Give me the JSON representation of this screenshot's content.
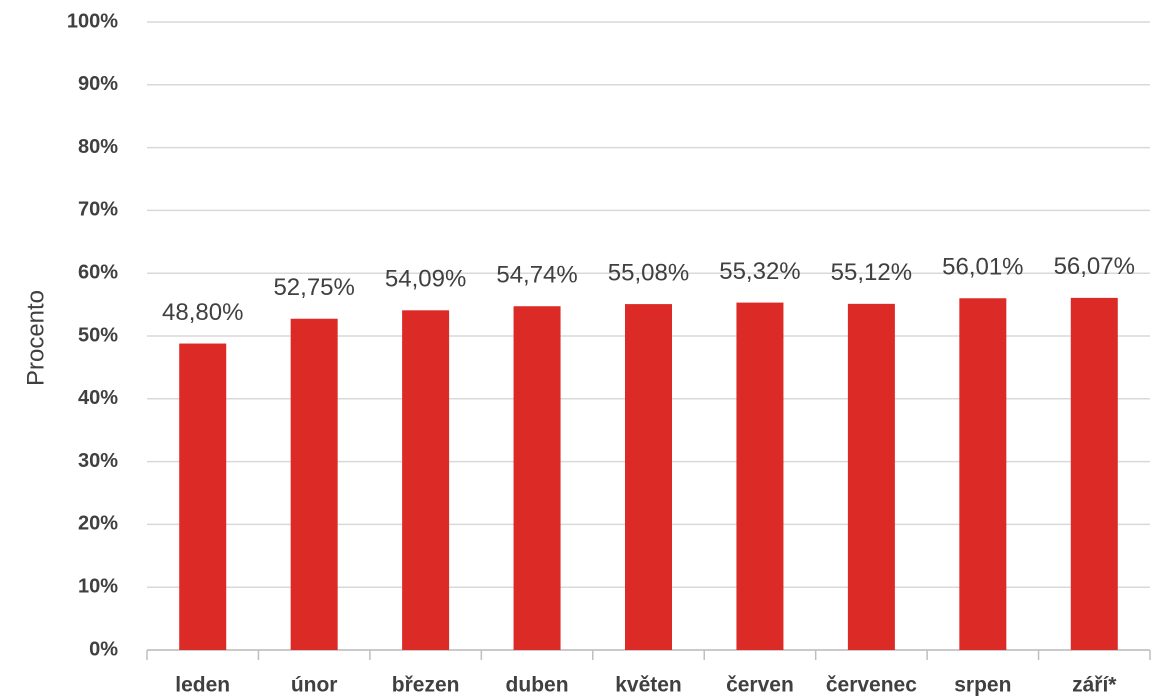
{
  "chart_data": {
    "type": "bar",
    "y_axis_label": "Procento",
    "categories": [
      "leden",
      "únor",
      "březen",
      "duben",
      "květen",
      "červen",
      "červenec",
      "srpen",
      "září*"
    ],
    "values": [
      48.8,
      52.75,
      54.09,
      54.74,
      55.08,
      55.32,
      55.12,
      56.01,
      56.07
    ],
    "value_labels": [
      "48,80%",
      "52,75%",
      "54,09%",
      "54,74%",
      "55,08%",
      "55,32%",
      "55,12%",
      "56,01%",
      "56,07%"
    ],
    "color": "#dc2a27",
    "ylim": [
      0,
      100
    ],
    "yticks": [
      {
        "value": 0,
        "label": "0%"
      },
      {
        "value": 10,
        "label": "10%"
      },
      {
        "value": 20,
        "label": "20%"
      },
      {
        "value": 30,
        "label": "30%"
      },
      {
        "value": 40,
        "label": "40%"
      },
      {
        "value": 50,
        "label": "50%"
      },
      {
        "value": 60,
        "label": "60%"
      },
      {
        "value": 70,
        "label": "70%"
      },
      {
        "value": 80,
        "label": "80%"
      },
      {
        "value": 90,
        "label": "90%"
      },
      {
        "value": 100,
        "label": "100%"
      }
    ],
    "grid": true
  }
}
